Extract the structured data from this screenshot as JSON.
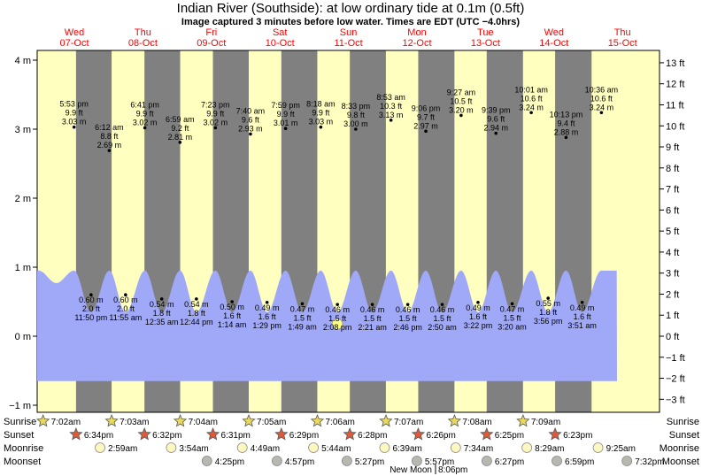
{
  "title": "Indian River (Southside): at low  ordinary tide at 0.1m (0.5ft)",
  "subtitle": "Image captured 3 minutes before low water. Times are EDT (UTC −4.0hrs)",
  "colors": {
    "day": "#ffffc0",
    "night": "#808080",
    "water": "#a0a8f8",
    "date_text": "#ff0000",
    "current_marker": "#ffff80"
  },
  "chart_data": {
    "type": "area",
    "y_left_unit": "m",
    "y_right_unit": "ft",
    "ylim_m": [
      -1.1,
      4.2
    ],
    "left_ticks": [
      {
        "value": 4,
        "label": "4 m"
      },
      {
        "value": 3,
        "label": "3 m"
      },
      {
        "value": 2,
        "label": "2 m"
      },
      {
        "value": 1,
        "label": "1 m"
      },
      {
        "value": 0,
        "label": "0 m"
      },
      {
        "value": -1,
        "label": "−1 m"
      }
    ],
    "right_ticks": [
      {
        "value": 13,
        "label": "13 ft"
      },
      {
        "value": 12,
        "label": "12 ft"
      },
      {
        "value": 11,
        "label": "11 ft"
      },
      {
        "value": 10,
        "label": "10 ft"
      },
      {
        "value": 9,
        "label": "9 ft"
      },
      {
        "value": 8,
        "label": "8 ft"
      },
      {
        "value": 7,
        "label": "7 ft"
      },
      {
        "value": 6,
        "label": "6 ft"
      },
      {
        "value": 5,
        "label": "5 ft"
      },
      {
        "value": 4,
        "label": "4 ft"
      },
      {
        "value": 3,
        "label": "3 ft"
      },
      {
        "value": 2,
        "label": "2 ft"
      },
      {
        "value": 1,
        "label": "1 ft"
      },
      {
        "value": 0,
        "label": "0 ft"
      },
      {
        "value": -1,
        "label": "−1 ft"
      },
      {
        "value": -2,
        "label": "−2 ft"
      },
      {
        "value": -3,
        "label": "−3 ft"
      }
    ],
    "days": [
      {
        "day": "Wed",
        "date": "07-Oct"
      },
      {
        "day": "Thu",
        "date": "08-Oct"
      },
      {
        "day": "Fri",
        "date": "09-Oct"
      },
      {
        "day": "Sat",
        "date": "10-Oct"
      },
      {
        "day": "Sun",
        "date": "11-Oct"
      },
      {
        "day": "Mon",
        "date": "12-Oct"
      },
      {
        "day": "Tue",
        "date": "13-Oct"
      },
      {
        "day": "Wed",
        "date": "14-Oct"
      },
      {
        "day": "Thu",
        "date": "15-Oct"
      }
    ],
    "high_tides": [
      {
        "time": "5:53 pm",
        "ft": "9.9 ft",
        "m": "3.03 m",
        "value": 3.03
      },
      {
        "time": "6:12 am",
        "ft": "8.8 ft",
        "m": "2.69 m",
        "value": 2.69
      },
      {
        "time": "6:41 pm",
        "ft": "9.9 ft",
        "m": "3.02 m",
        "value": 3.02
      },
      {
        "time": "6:59 am",
        "ft": "9.2 ft",
        "m": "2.81 m",
        "value": 2.81
      },
      {
        "time": "7:23 pm",
        "ft": "9.9 ft",
        "m": "3.02 m",
        "value": 3.02
      },
      {
        "time": "7:40 am",
        "ft": "9.6 ft",
        "m": "2.93 m",
        "value": 2.93
      },
      {
        "time": "7:59 pm",
        "ft": "9.9 ft",
        "m": "3.01 m",
        "value": 3.01
      },
      {
        "time": "8:18 am",
        "ft": "9.9 ft",
        "m": "3.03 m",
        "value": 3.03
      },
      {
        "time": "8:33 pm",
        "ft": "9.8 ft",
        "m": "3.00 m",
        "value": 3.0
      },
      {
        "time": "8:53 am",
        "ft": "10.3 ft",
        "m": "3.13 m",
        "value": 3.13
      },
      {
        "time": "9:06 pm",
        "ft": "9.7 ft",
        "m": "2.97 m",
        "value": 2.97
      },
      {
        "time": "9:27 am",
        "ft": "10.5 ft",
        "m": "3.20 m",
        "value": 3.2
      },
      {
        "time": "9:39 pm",
        "ft": "9.6 ft",
        "m": "2.94 m",
        "value": 2.94
      },
      {
        "time": "10:01 am",
        "ft": "10.6 ft",
        "m": "3.24 m",
        "value": 3.24
      },
      {
        "time": "10:13 pm",
        "ft": "9.4 ft",
        "m": "2.88 m",
        "value": 2.88
      },
      {
        "time": "10:36 am",
        "ft": "10.6 ft",
        "m": "3.24 m",
        "value": 3.24
      }
    ],
    "low_tides": [
      {
        "time": "11:50 pm",
        "ft": "2.0 ft",
        "m": "0.60 m",
        "value": 0.6
      },
      {
        "time": "11:55 am",
        "ft": "2.0 ft",
        "m": "0.60 m",
        "value": 0.6
      },
      {
        "time": "12:35 am",
        "ft": "1.8 ft",
        "m": "0.54 m",
        "value": 0.54
      },
      {
        "time": "12:44 pm",
        "ft": "1.8 ft",
        "m": "0.54 m",
        "value": 0.54
      },
      {
        "time": "1:14 am",
        "ft": "1.6 ft",
        "m": "0.50 m",
        "value": 0.5
      },
      {
        "time": "1:29 pm",
        "ft": "1.6 ft",
        "m": "0.49 m",
        "value": 0.49
      },
      {
        "time": "1:49 am",
        "ft": "1.5 ft",
        "m": "0.47 m",
        "value": 0.47
      },
      {
        "time": "2:08 pm",
        "ft": "1.5 ft",
        "m": "0.46 m",
        "value": 0.46
      },
      {
        "time": "2:21 am",
        "ft": "1.5 ft",
        "m": "0.46 m",
        "value": 0.46
      },
      {
        "time": "2:46 pm",
        "ft": "1.5 ft",
        "m": "0.46 m",
        "value": 0.46
      },
      {
        "time": "2:50 am",
        "ft": "1.5 ft",
        "m": "0.46 m",
        "value": 0.46
      },
      {
        "time": "3:22 pm",
        "ft": "1.6 ft",
        "m": "0.49 m",
        "value": 0.49
      },
      {
        "time": "3:20 am",
        "ft": "1.5 ft",
        "m": "0.47 m",
        "value": 0.47
      },
      {
        "time": "3:56 pm",
        "ft": "1.8 ft",
        "m": "0.55 m",
        "value": 0.55
      },
      {
        "time": "3:51 am",
        "ft": "1.6 ft",
        "m": "0.49 m",
        "value": 0.49
      }
    ],
    "current_level_m": 0.1,
    "rows": [
      {
        "label": "Sunrise",
        "icon": "sunrise-star-icon",
        "times": [
          "7:02am",
          "7:03am",
          "7:04am",
          "7:05am",
          "7:06am",
          "7:07am",
          "7:08am",
          "7:09am"
        ]
      },
      {
        "label": "Sunset",
        "icon": "sunset-star-icon",
        "times": [
          "6:34pm",
          "6:32pm",
          "6:31pm",
          "6:29pm",
          "6:28pm",
          "6:26pm",
          "6:25pm",
          "6:23pm"
        ]
      },
      {
        "label": "Moonrise",
        "icon": "moonrise-circle-icon",
        "times": [
          "2:59am",
          "3:54am",
          "4:49am",
          "5:44am",
          "6:39am",
          "7:34am",
          "8:29am",
          "9:25am"
        ]
      },
      {
        "label": "Moonset",
        "icon": "moonset-circle-icon",
        "times": [
          "4:25pm",
          "4:57pm",
          "5:27pm",
          "5:57pm",
          "6:27pm",
          "6:59pm",
          "7:32pm"
        ]
      }
    ],
    "moon_phase": {
      "label": "New Moon",
      "time": "8:06pm"
    }
  }
}
